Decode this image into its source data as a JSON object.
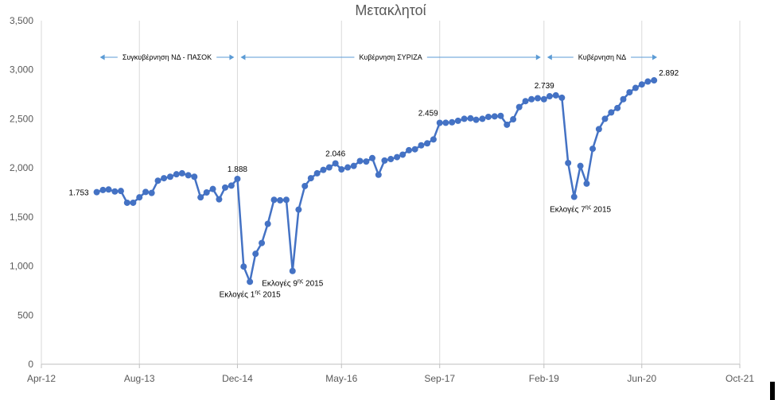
{
  "chart_data": {
    "type": "line",
    "title": "Μετακλητοί",
    "xlabel": "",
    "ylabel": "",
    "x_range": [
      "2012-04-01",
      "2021-10-01"
    ],
    "ylim": [
      0,
      3500
    ],
    "y_ticks": [
      0,
      500,
      1000,
      1500,
      2000,
      2500,
      3000,
      3500
    ],
    "y_tick_labels": [
      "0",
      "500",
      "1,000",
      "1,500",
      "2,000",
      "2,500",
      "3,000",
      "3,500"
    ],
    "x_ticks": [
      "2012-04-01",
      "2013-08-01",
      "2014-12-01",
      "2016-05-01",
      "2017-09-01",
      "2019-02-01",
      "2020-06-01",
      "2021-10-01"
    ],
    "x_tick_labels": [
      "Apr-12",
      "Aug-13",
      "Dec-14",
      "May-16",
      "Sep-17",
      "Feb-19",
      "Jun-20",
      "Oct-21"
    ],
    "grid": "vertical",
    "series_color": "#4472c4",
    "series": [
      {
        "x": [
          "2013-01-01",
          "2013-02-01",
          "2013-03-01",
          "2013-04-01",
          "2013-05-01",
          "2013-06-01",
          "2013-07-01",
          "2013-08-01",
          "2013-09-01",
          "2013-10-01",
          "2013-11-01",
          "2013-12-01",
          "2014-01-01",
          "2014-02-01",
          "2014-03-01",
          "2014-04-01",
          "2014-05-01",
          "2014-06-01",
          "2014-07-01",
          "2014-08-01",
          "2014-09-01",
          "2014-10-01",
          "2014-11-01",
          "2014-12-01",
          "2015-01-01",
          "2015-02-01",
          "2015-03-01",
          "2015-04-01",
          "2015-05-01",
          "2015-06-01",
          "2015-07-01",
          "2015-08-01",
          "2015-09-01",
          "2015-10-01",
          "2015-11-01",
          "2015-12-01",
          "2016-01-01",
          "2016-02-01",
          "2016-03-01",
          "2016-04-01",
          "2016-05-01",
          "2016-06-01",
          "2016-07-01",
          "2016-08-01",
          "2016-09-01",
          "2016-10-01",
          "2016-11-01",
          "2016-12-01",
          "2017-01-01",
          "2017-02-01",
          "2017-03-01",
          "2017-04-01",
          "2017-05-01",
          "2017-06-01",
          "2017-07-01",
          "2017-08-01",
          "2017-09-01",
          "2017-10-01",
          "2017-11-01",
          "2017-12-01",
          "2018-01-01",
          "2018-02-01",
          "2018-03-01",
          "2018-04-01",
          "2018-05-01",
          "2018-06-01",
          "2018-07-01",
          "2018-08-01",
          "2018-09-01",
          "2018-10-01",
          "2018-11-01",
          "2018-12-01",
          "2019-01-01",
          "2019-02-01",
          "2019-03-01",
          "2019-04-01",
          "2019-05-01",
          "2019-06-01",
          "2019-07-01",
          "2019-08-01",
          "2019-09-01",
          "2019-10-01",
          "2019-11-01",
          "2019-12-01",
          "2020-01-01",
          "2020-02-01",
          "2020-03-01",
          "2020-04-01",
          "2020-05-01",
          "2020-06-01",
          "2020-07-01",
          "2020-08-01"
        ],
        "values": [
          1753,
          1775,
          1780,
          1760,
          1765,
          1645,
          1645,
          1700,
          1755,
          1745,
          1870,
          1895,
          1910,
          1935,
          1945,
          1925,
          1910,
          1700,
          1750,
          1785,
          1680,
          1800,
          1820,
          1888,
          995,
          840,
          1125,
          1235,
          1430,
          1675,
          1670,
          1675,
          950,
          1575,
          1815,
          1895,
          1945,
          1980,
          2005,
          2046,
          1985,
          2005,
          2020,
          2070,
          2065,
          2100,
          1930,
          2075,
          2090,
          2110,
          2135,
          2180,
          2190,
          2230,
          2250,
          2290,
          2459,
          2460,
          2465,
          2480,
          2500,
          2505,
          2490,
          2500,
          2520,
          2525,
          2530,
          2440,
          2495,
          2620,
          2680,
          2700,
          2710,
          2700,
          2730,
          2739,
          2715,
          2050,
          1705,
          2020,
          1840,
          2195,
          2395,
          2500,
          2565,
          2610,
          2700,
          2770,
          2815,
          2850,
          2880,
          2892
        ]
      }
    ],
    "data_labels": [
      {
        "x": "2013-01-01",
        "y": 1753,
        "text": "1.753",
        "pos": "left"
      },
      {
        "x": "2014-12-01",
        "y": 1888,
        "text": "1.888",
        "pos": "above"
      },
      {
        "x": "2016-04-01",
        "y": 2046,
        "text": "2.046",
        "pos": "above"
      },
      {
        "x": "2017-09-01",
        "y": 2459,
        "text": "2.459",
        "pos": "above-left"
      },
      {
        "x": "2019-04-01",
        "y": 2739,
        "text": "2.739",
        "pos": "above-left"
      },
      {
        "x": "2020-08-01",
        "y": 2892,
        "text": "2.892",
        "pos": "above-right"
      }
    ],
    "annotations": [
      {
        "x": "2015-02-01",
        "y": 840,
        "prefix": "Εκλογές 1",
        "sup": "ης",
        "suffix": " 2015"
      },
      {
        "x": "2015-09-01",
        "y": 950,
        "prefix": "Εκλογές 9",
        "sup": "ης",
        "suffix": " 2015"
      },
      {
        "x": "2019-08-01",
        "y": 1705,
        "prefix": "Εκλογές 7",
        "sup": "ης",
        "suffix": " 2015"
      }
    ],
    "periods": [
      {
        "label": "Συγκυβέρνηση  ΝΔ - ΠΑΣΟΚ",
        "from": "2013-01-01",
        "to": "2014-12-01"
      },
      {
        "label": "Κυβέρνηση  ΣΥΡΙΖΑ",
        "from": "2014-12-01",
        "to": "2019-02-01"
      },
      {
        "label": "Κυβέρνηση  ΝΔ",
        "from": "2019-02-01",
        "to": "2020-09-01"
      }
    ]
  }
}
